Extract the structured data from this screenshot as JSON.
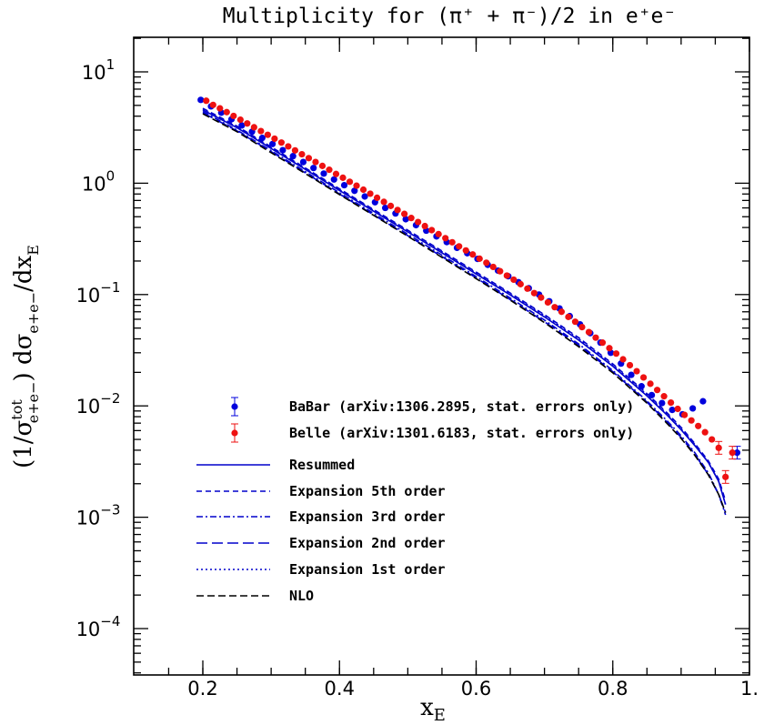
{
  "chart_data": {
    "type": "line",
    "title": "Multiplicity for (π⁺ + π⁻)/2 in e⁺e⁻",
    "xlabel": "x_E",
    "ylabel": "(1/σ^tot_e+e−) dσ_e+e−/dx_E",
    "xlim": [
      0.1,
      1.0
    ],
    "ylim": [
      6e-05,
      30
    ],
    "yscale": "log",
    "x_ticks": [
      {
        "v": 0.2,
        "label": "0.2"
      },
      {
        "v": 0.4,
        "label": "0.4"
      },
      {
        "v": 0.6,
        "label": "0.6"
      },
      {
        "v": 0.8,
        "label": "0.8"
      },
      {
        "v": 1.0,
        "label": "1."
      }
    ],
    "y_ticks": [
      {
        "v": 10,
        "base": "10",
        "exp": "1"
      },
      {
        "v": 1,
        "base": "10",
        "exp": "0"
      },
      {
        "v": 0.1,
        "base": "10",
        "exp": "−1"
      },
      {
        "v": 0.01,
        "base": "10",
        "exp": "−2"
      },
      {
        "v": 0.001,
        "base": "10",
        "exp": "−3"
      },
      {
        "v": 0.0001,
        "base": "10",
        "exp": "−4"
      }
    ],
    "legend_position": "lower-left",
    "series": [
      {
        "name": "BaBar (arXiv:1306.2895, stat. errors only)",
        "kind": "points",
        "color": "#0000dd",
        "x": [
          0.197,
          0.212,
          0.227,
          0.242,
          0.257,
          0.272,
          0.287,
          0.302,
          0.317,
          0.332,
          0.347,
          0.362,
          0.377,
          0.392,
          0.407,
          0.422,
          0.437,
          0.452,
          0.467,
          0.482,
          0.497,
          0.512,
          0.527,
          0.542,
          0.557,
          0.572,
          0.587,
          0.602,
          0.617,
          0.632,
          0.647,
          0.662,
          0.677,
          0.692,
          0.707,
          0.722,
          0.737,
          0.752,
          0.767,
          0.782,
          0.797,
          0.812,
          0.827,
          0.842,
          0.857,
          0.872,
          0.887,
          0.902,
          0.917,
          0.932,
          0.982
        ],
        "y": [
          5.6,
          4.9,
          4.3,
          3.75,
          3.3,
          2.9,
          2.55,
          2.25,
          1.98,
          1.75,
          1.55,
          1.37,
          1.22,
          1.08,
          0.96,
          0.855,
          0.76,
          0.675,
          0.6,
          0.535,
          0.475,
          0.42,
          0.375,
          0.333,
          0.296,
          0.263,
          0.235,
          0.209,
          0.185,
          0.164,
          0.146,
          0.129,
          0.114,
          0.1,
          0.087,
          0.075,
          0.064,
          0.054,
          0.045,
          0.037,
          0.03,
          0.024,
          0.019,
          0.015,
          0.0125,
          0.0106,
          0.0092,
          0.0084,
          0.0095,
          0.011,
          0.0038
        ]
      },
      {
        "name": "Belle (arXiv:1301.6183, stat. errors only)",
        "kind": "points",
        "color": "#ee1111",
        "x": [
          0.205,
          0.215,
          0.225,
          0.235,
          0.245,
          0.255,
          0.265,
          0.275,
          0.285,
          0.295,
          0.305,
          0.315,
          0.325,
          0.335,
          0.345,
          0.355,
          0.365,
          0.375,
          0.385,
          0.395,
          0.405,
          0.415,
          0.425,
          0.435,
          0.445,
          0.455,
          0.465,
          0.475,
          0.485,
          0.495,
          0.505,
          0.515,
          0.525,
          0.535,
          0.545,
          0.555,
          0.565,
          0.575,
          0.585,
          0.595,
          0.605,
          0.615,
          0.625,
          0.635,
          0.645,
          0.655,
          0.665,
          0.675,
          0.685,
          0.695,
          0.705,
          0.715,
          0.725,
          0.735,
          0.745,
          0.755,
          0.765,
          0.775,
          0.785,
          0.795,
          0.805,
          0.815,
          0.825,
          0.835,
          0.845,
          0.855,
          0.865,
          0.875,
          0.885,
          0.895,
          0.905,
          0.915,
          0.925,
          0.935,
          0.945,
          0.955,
          0.965,
          0.975
        ],
        "y": [
          5.5,
          5.05,
          4.7,
          4.35,
          4.02,
          3.72,
          3.44,
          3.18,
          2.94,
          2.72,
          2.51,
          2.32,
          2.14,
          1.97,
          1.82,
          1.68,
          1.55,
          1.43,
          1.32,
          1.21,
          1.12,
          1.03,
          0.95,
          0.875,
          0.805,
          0.74,
          0.68,
          0.625,
          0.575,
          0.53,
          0.487,
          0.448,
          0.412,
          0.379,
          0.349,
          0.321,
          0.295,
          0.271,
          0.249,
          0.229,
          0.21,
          0.193,
          0.177,
          0.162,
          0.148,
          0.136,
          0.124,
          0.113,
          0.103,
          0.094,
          0.085,
          0.077,
          0.07,
          0.063,
          0.057,
          0.051,
          0.046,
          0.041,
          0.037,
          0.033,
          0.0295,
          0.0262,
          0.0232,
          0.0205,
          0.018,
          0.0158,
          0.0139,
          0.0122,
          0.0107,
          0.0094,
          0.0083,
          0.0074,
          0.0066,
          0.0058,
          0.005,
          0.0042,
          0.0023,
          0.0038
        ]
      },
      {
        "name": "Resummed",
        "kind": "line",
        "color": "#0000cc",
        "dash": "",
        "x": [
          0.2,
          0.25,
          0.3,
          0.35,
          0.4,
          0.45,
          0.5,
          0.55,
          0.6,
          0.65,
          0.7,
          0.75,
          0.8,
          0.85,
          0.88,
          0.9,
          0.92,
          0.94,
          0.955,
          0.965
        ],
        "y": [
          4.55,
          3.15,
          2.05,
          1.33,
          0.86,
          0.56,
          0.365,
          0.237,
          0.153,
          0.099,
          0.063,
          0.039,
          0.0227,
          0.0123,
          0.0082,
          0.0061,
          0.0044,
          0.0031,
          0.0021,
          0.0013
        ]
      },
      {
        "name": "Expansion 5th order",
        "kind": "line",
        "color": "#0000cc",
        "dash": "6,4",
        "x": [
          0.2,
          0.25,
          0.3,
          0.35,
          0.4,
          0.45,
          0.5,
          0.55,
          0.6,
          0.65,
          0.7,
          0.75,
          0.8,
          0.85,
          0.88,
          0.9,
          0.92,
          0.94,
          0.955,
          0.965
        ],
        "y": [
          4.7,
          3.25,
          2.12,
          1.37,
          0.89,
          0.58,
          0.378,
          0.246,
          0.159,
          0.103,
          0.066,
          0.041,
          0.0238,
          0.0129,
          0.0086,
          0.0064,
          0.0046,
          0.0032,
          0.0022,
          0.0014
        ]
      },
      {
        "name": "Expansion 3rd order",
        "kind": "line",
        "color": "#0000cc",
        "dash": "7,3,2,3",
        "x": [
          0.2,
          0.25,
          0.3,
          0.35,
          0.4,
          0.45,
          0.5,
          0.55,
          0.6,
          0.65,
          0.7,
          0.75,
          0.8,
          0.85,
          0.88,
          0.9,
          0.92,
          0.94,
          0.955,
          0.965
        ],
        "y": [
          4.4,
          3.0,
          1.96,
          1.27,
          0.82,
          0.535,
          0.348,
          0.226,
          0.145,
          0.093,
          0.059,
          0.036,
          0.0208,
          0.0111,
          0.0073,
          0.0054,
          0.0038,
          0.0025,
          0.0016,
          0.00105
        ]
      },
      {
        "name": "Expansion 2nd order",
        "kind": "line",
        "color": "#0000cc",
        "dash": "12,5",
        "x": [
          0.2,
          0.25,
          0.3,
          0.35,
          0.4,
          0.45,
          0.5,
          0.55,
          0.6,
          0.65,
          0.7,
          0.75,
          0.8,
          0.85,
          0.88,
          0.9,
          0.92,
          0.94,
          0.955,
          0.965
        ],
        "y": [
          4.3,
          2.95,
          1.92,
          1.24,
          0.8,
          0.52,
          0.338,
          0.219,
          0.141,
          0.09,
          0.057,
          0.035,
          0.0203,
          0.0108,
          0.0071,
          0.0052,
          0.0037,
          0.0024,
          0.0016,
          0.0011
        ]
      },
      {
        "name": "Expansion 1st order",
        "kind": "line",
        "color": "#0000cc",
        "dash": "2,3",
        "x": [
          0.2,
          0.25,
          0.3,
          0.35,
          0.4,
          0.45,
          0.5,
          0.55,
          0.6,
          0.65,
          0.7,
          0.75,
          0.8,
          0.85,
          0.88,
          0.9,
          0.92,
          0.94,
          0.955,
          0.965
        ],
        "y": [
          4.6,
          3.2,
          2.08,
          1.35,
          0.875,
          0.57,
          0.372,
          0.242,
          0.156,
          0.101,
          0.065,
          0.04,
          0.0233,
          0.0126,
          0.0084,
          0.0062,
          0.0045,
          0.0031,
          0.0021,
          0.0013
        ]
      },
      {
        "name": "NLO",
        "kind": "line",
        "color": "#000000",
        "dash": "8,4",
        "x": [
          0.2,
          0.25,
          0.3,
          0.35,
          0.4,
          0.45,
          0.5,
          0.55,
          0.6,
          0.65,
          0.7,
          0.75,
          0.8,
          0.85,
          0.88,
          0.9,
          0.92,
          0.94,
          0.955,
          0.965
        ],
        "y": [
          4.2,
          2.9,
          1.88,
          1.22,
          0.79,
          0.515,
          0.334,
          0.216,
          0.139,
          0.089,
          0.056,
          0.034,
          0.0198,
          0.0106,
          0.0069,
          0.0051,
          0.0036,
          0.0024,
          0.0016,
          0.0011
        ]
      }
    ]
  }
}
